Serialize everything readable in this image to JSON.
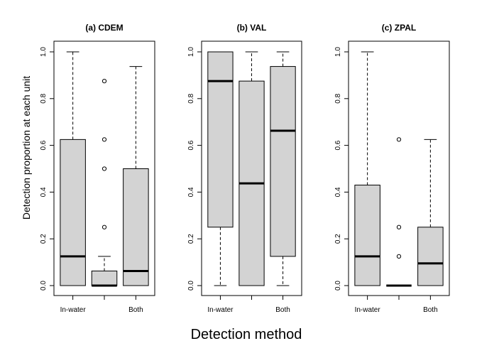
{
  "figure": {
    "ylabel": "Detection proportion at each unit",
    "xlabel": "Detection method"
  },
  "chart_data": [
    {
      "type": "box",
      "title": "(a) CDEM",
      "categories": [
        "In-water",
        "",
        "Both"
      ],
      "ylim": [
        0,
        1
      ],
      "yticks": [
        "0.0",
        "0.2",
        "0.4",
        "0.6",
        "0.8",
        "1.0"
      ],
      "boxes": [
        {
          "whisker_low": 0,
          "q1": 0,
          "median": 0.125,
          "q3": 0.625,
          "whisker_high": 1.0,
          "outliers": []
        },
        {
          "whisker_low": 0,
          "q1": 0,
          "median": 0,
          "q3": 0.0625,
          "whisker_high": 0.125,
          "outliers": [
            0.25,
            0.5,
            0.625,
            0.875
          ]
        },
        {
          "whisker_low": 0,
          "q1": 0,
          "median": 0.0625,
          "q3": 0.5,
          "whisker_high": 0.9375,
          "outliers": []
        }
      ]
    },
    {
      "type": "box",
      "title": "(b) VAL",
      "categories": [
        "In-water",
        "",
        "Both"
      ],
      "ylim": [
        0,
        1
      ],
      "yticks": [
        "0.0",
        "0.2",
        "0.4",
        "0.6",
        "0.8",
        "1.0"
      ],
      "boxes": [
        {
          "whisker_low": 0,
          "q1": 0.25,
          "median": 0.875,
          "q3": 1.0,
          "whisker_high": 1.0,
          "outliers": []
        },
        {
          "whisker_low": 0,
          "q1": 0,
          "median": 0.4375,
          "q3": 0.875,
          "whisker_high": 1.0,
          "outliers": []
        },
        {
          "whisker_low": 0,
          "q1": 0.125,
          "median": 0.6625,
          "q3": 0.9375,
          "whisker_high": 1.0,
          "outliers": []
        }
      ]
    },
    {
      "type": "box",
      "title": "(c) ZPAL",
      "categories": [
        "In-water",
        "",
        "Both"
      ],
      "ylim": [
        0,
        1
      ],
      "yticks": [
        "0.0",
        "0.2",
        "0.4",
        "0.6",
        "0.8",
        "1.0"
      ],
      "boxes": [
        {
          "whisker_low": 0,
          "q1": 0,
          "median": 0.125,
          "q3": 0.43,
          "whisker_high": 1.0,
          "outliers": []
        },
        {
          "whisker_low": 0,
          "q1": 0,
          "median": 0,
          "q3": 0,
          "whisker_high": 0,
          "outliers": [
            0.125,
            0.25,
            0.625
          ]
        },
        {
          "whisker_low": 0,
          "q1": 0,
          "median": 0.095,
          "q3": 0.25,
          "whisker_high": 0.625,
          "outliers": []
        }
      ]
    }
  ]
}
